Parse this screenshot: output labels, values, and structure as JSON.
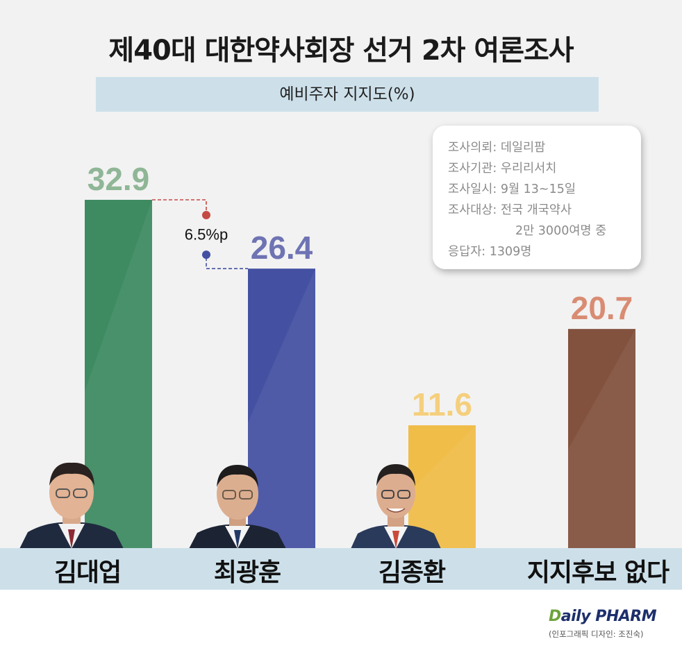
{
  "title": "제40대 대한약사회장 선거 2차 여론조사",
  "subtitle": "예비주자 지지도(%)",
  "info": {
    "line1": "조사의뢰: 데일리팜",
    "line2": "조사기관: 우리리서치",
    "line3": "조사일시: 9월 13~15일",
    "line4": "조사대상: 전국 개국약사",
    "line5": "2만 3000여명 중",
    "line6": "응답자: 1309명"
  },
  "gap_label": "6.5%p",
  "logo": {
    "d": "D",
    "rest": "aily PHARM"
  },
  "credit": "(인포그래픽 디자인: 조진숙)",
  "chart_data": {
    "type": "bar",
    "title": "제40대 대한약사회장 선거 2차 여론조사",
    "subtitle": "예비주자 지지도(%)",
    "categories": [
      "김대업",
      "최광훈",
      "김종환",
      "지지후보 없다"
    ],
    "values": [
      32.9,
      26.4,
      11.6,
      20.7
    ],
    "value_labels": [
      "32.9",
      "26.4",
      "11.6",
      "20.7"
    ],
    "colors": [
      "#3e8b62",
      "#4451a2",
      "#f0bd49",
      "#82523e"
    ],
    "label_colors": [
      "#8fb696",
      "#6e73b3",
      "#f5cf7d",
      "#d98c73"
    ],
    "ylim": [
      0,
      32.9
    ],
    "annotation": {
      "text": "6.5%p",
      "between": [
        0,
        1
      ]
    },
    "grid": false,
    "legend": "none"
  }
}
